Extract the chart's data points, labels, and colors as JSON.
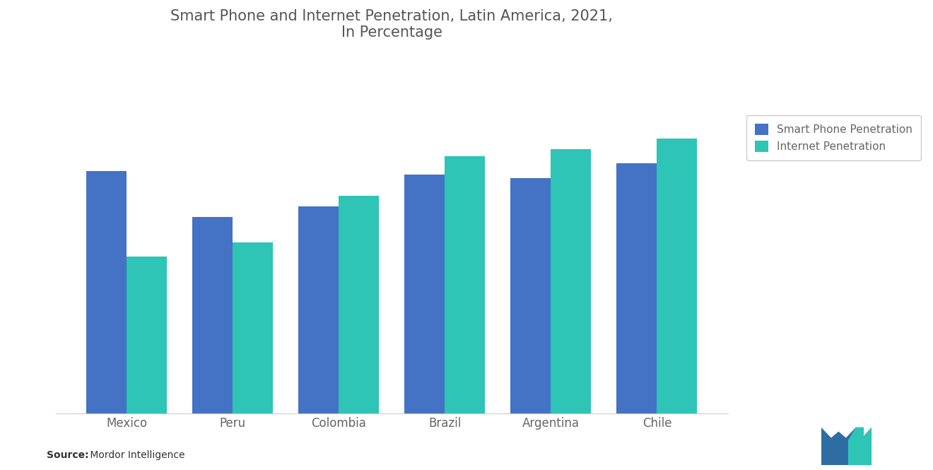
{
  "title": "Smart Phone and Internet Penetration, Latin America, 2021,\nIn Percentage",
  "categories": [
    "Mexico",
    "Peru",
    "Colombia",
    "Brazil",
    "Argentina",
    "Chile"
  ],
  "smartphone_penetration": [
    68,
    55,
    58,
    67,
    66,
    70
  ],
  "internet_penetration": [
    44,
    48,
    61,
    72,
    74,
    77
  ],
  "bar_color_smartphone": "#4472C4",
  "bar_color_internet": "#2EC4B6",
  "legend_smartphone": "Smart Phone Penetration",
  "legend_internet": "Internet Penetration",
  "source_bold": "Source:",
  "source_detail": " Mordor Intelligence",
  "background_color": "#FFFFFF",
  "title_color": "#555555",
  "label_color": "#666666",
  "ylim": [
    0,
    100
  ],
  "bar_width": 0.38,
  "title_fontsize": 15,
  "label_fontsize": 12,
  "legend_fontsize": 11,
  "source_fontsize": 10
}
